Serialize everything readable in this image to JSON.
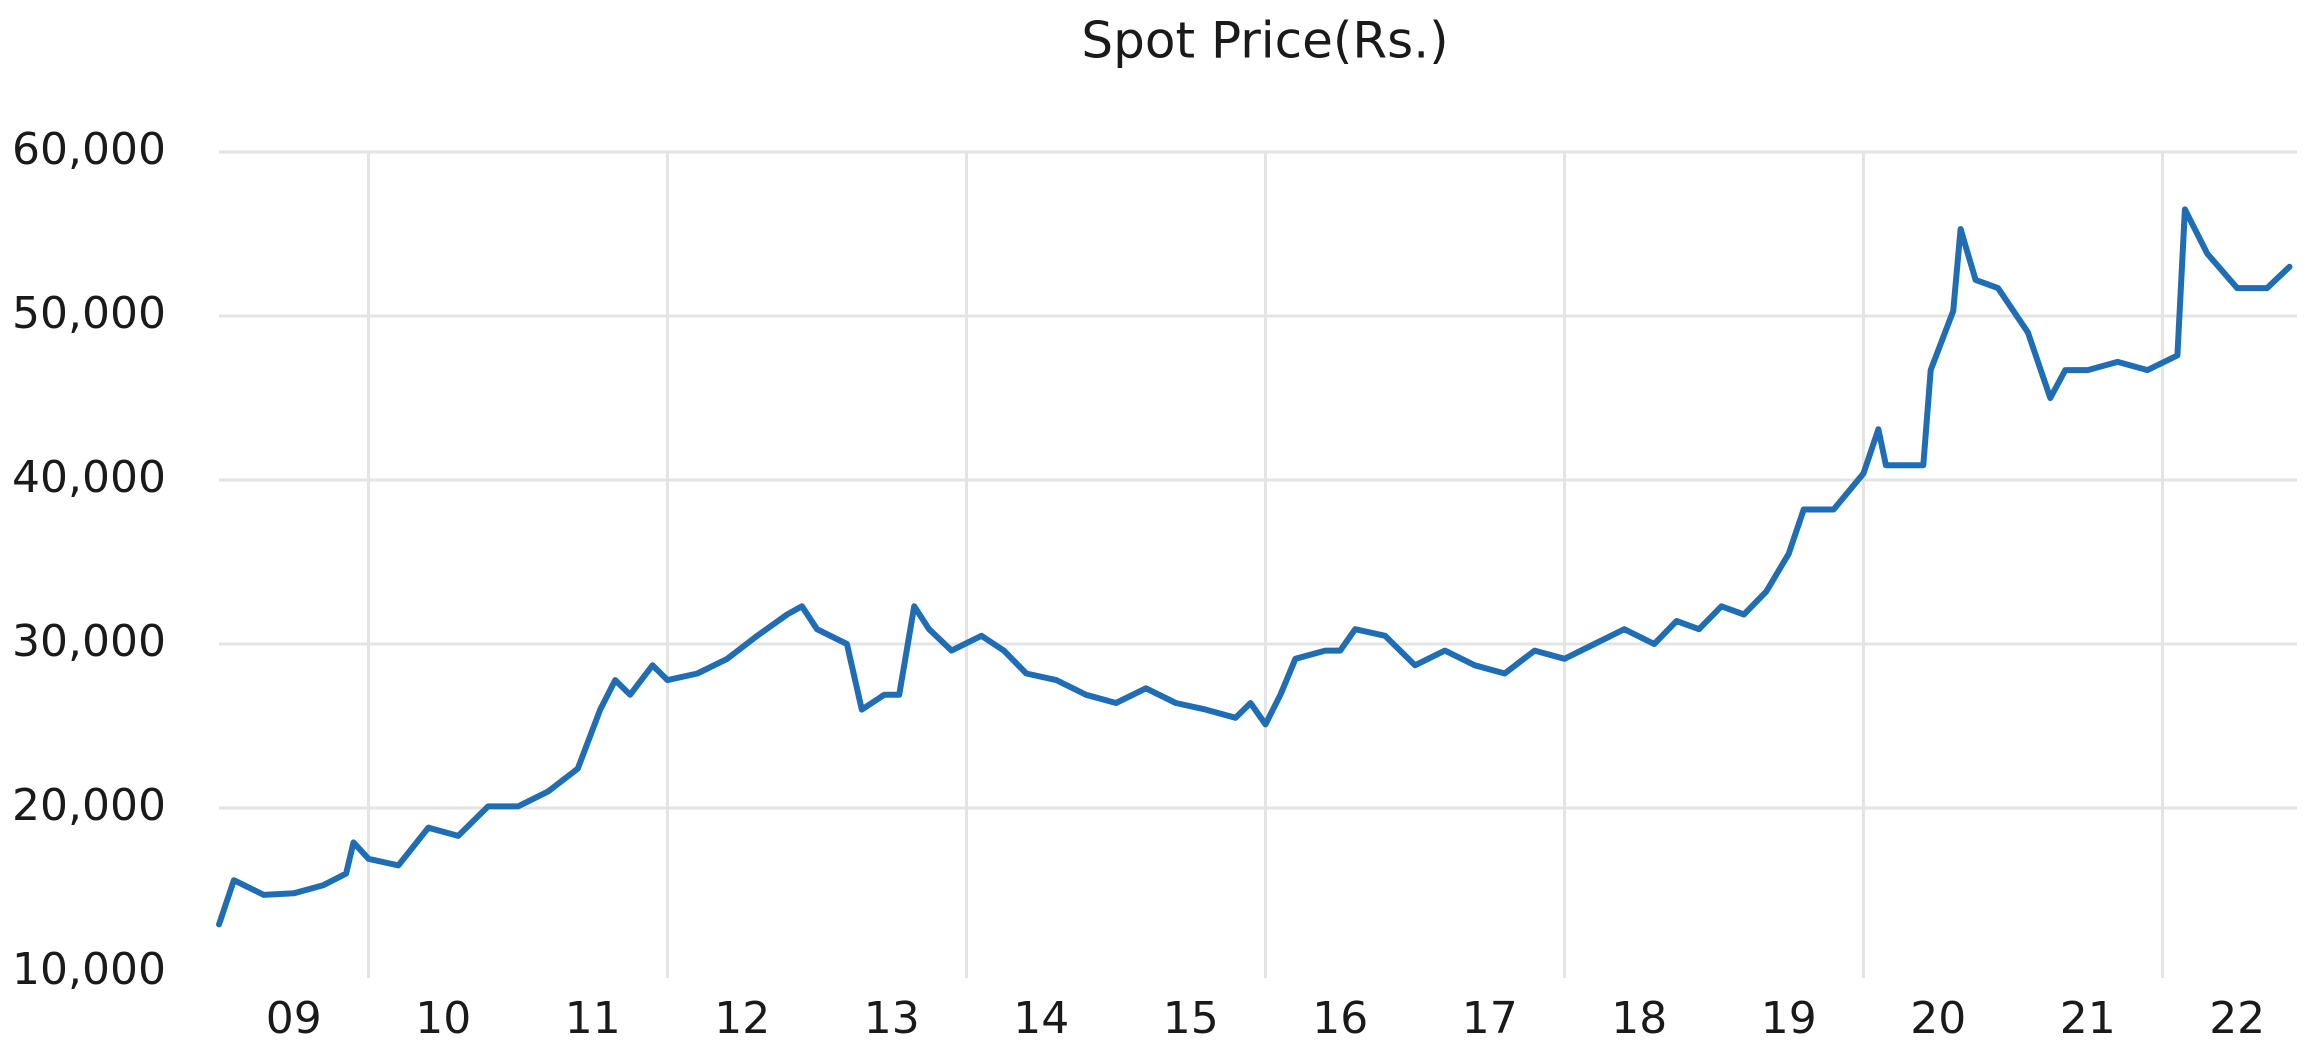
{
  "chart_data": {
    "type": "line",
    "title": "Spot Price(Rs.)",
    "x": [
      9.0,
      9.1,
      9.3,
      9.5,
      9.7,
      9.85,
      9.9,
      10.0,
      10.2,
      10.4,
      10.6,
      10.8,
      11.0,
      11.2,
      11.4,
      11.55,
      11.65,
      11.75,
      11.9,
      12.0,
      12.2,
      12.4,
      12.6,
      12.8,
      12.9,
      13.0,
      13.2,
      13.3,
      13.45,
      13.55,
      13.65,
      13.75,
      13.9,
      14.1,
      14.25,
      14.4,
      14.6,
      14.8,
      15.0,
      15.2,
      15.4,
      15.6,
      15.8,
      15.9,
      16.0,
      16.1,
      16.2,
      16.4,
      16.5,
      16.6,
      16.8,
      17.0,
      17.2,
      17.4,
      17.6,
      17.8,
      18.0,
      18.2,
      18.4,
      18.6,
      18.75,
      18.9,
      19.05,
      19.2,
      19.35,
      19.5,
      19.6,
      19.8,
      20.0,
      20.1,
      20.15,
      20.4,
      20.45,
      20.6,
      20.65,
      20.75,
      20.9,
      21.1,
      21.25,
      21.35,
      21.5,
      21.7,
      21.9,
      22.1,
      22.15,
      22.3,
      22.5,
      22.7,
      22.85
    ],
    "series": [
      {
        "color": "#1f6db4",
        "values": [
          12900,
          15600,
          14700,
          14800,
          15300,
          16000,
          17900,
          16900,
          16500,
          18800,
          18300,
          20100,
          20100,
          21000,
          22400,
          26000,
          27800,
          26900,
          28700,
          27800,
          28200,
          29100,
          30500,
          31800,
          32300,
          30900,
          30000,
          26000,
          26900,
          26900,
          32300,
          30900,
          29600,
          30500,
          29600,
          28200,
          27800,
          26900,
          26400,
          27300,
          26400,
          26000,
          25500,
          26400,
          25100,
          26900,
          29100,
          29600,
          29600,
          30900,
          30500,
          28700,
          29600,
          28700,
          28200,
          29600,
          29100,
          30000,
          30900,
          30000,
          31400,
          30900,
          32300,
          31800,
          33200,
          35500,
          38200,
          38200,
          40400,
          43100,
          40900,
          40900,
          46700,
          50300,
          55300,
          52200,
          51700,
          49000,
          45000,
          46700,
          46700,
          47200,
          46700,
          47600,
          56500,
          53800,
          51700,
          51700,
          53000
        ]
      }
    ],
    "xlim": [
      9.0,
      22.9
    ],
    "xticks": [
      {
        "value": 9.5,
        "label": "09"
      },
      {
        "value": 10.5,
        "label": "10"
      },
      {
        "value": 11.5,
        "label": "11"
      },
      {
        "value": 12.5,
        "label": "12"
      },
      {
        "value": 13.5,
        "label": "13"
      },
      {
        "value": 14.5,
        "label": "14"
      },
      {
        "value": 15.5,
        "label": "15"
      },
      {
        "value": 16.5,
        "label": "16"
      },
      {
        "value": 17.5,
        "label": "17"
      },
      {
        "value": 18.5,
        "label": "18"
      },
      {
        "value": 19.5,
        "label": "19"
      },
      {
        "value": 20.5,
        "label": "20"
      },
      {
        "value": 21.5,
        "label": "21"
      },
      {
        "value": 22.5,
        "label": "22"
      }
    ],
    "xgrid": [
      10,
      12,
      14,
      16,
      18,
      20,
      22
    ],
    "ylim": [
      10000,
      60000
    ],
    "yticks": [
      {
        "value": 10000,
        "label": "10,000"
      },
      {
        "value": 20000,
        "label": "20,000"
      },
      {
        "value": 30000,
        "label": "30,000"
      },
      {
        "value": 40000,
        "label": "40,000"
      },
      {
        "value": 50000,
        "label": "50,000"
      },
      {
        "value": 60000,
        "label": "60,000"
      }
    ],
    "grid": true
  }
}
